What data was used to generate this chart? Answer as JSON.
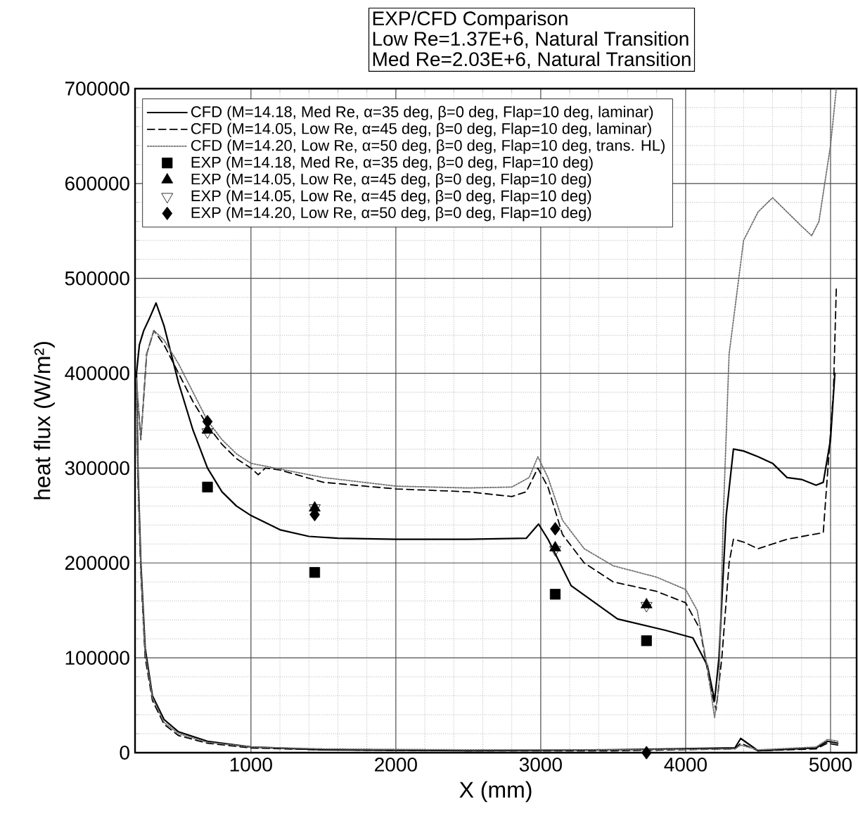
{
  "chart_data": {
    "type": "line",
    "title": "EXP/CFD Comparison",
    "subtitle": "Low Re=1.37E+6, Natural Transition",
    "annotations": [
      "Med Re=2.03E+6, Natural Transition"
    ],
    "xlabel": "X (mm)",
    "ylabel": "heat flux (W/m²)",
    "xlim": [
      200,
      5180
    ],
    "ylim": [
      0,
      700000
    ],
    "xticks": [
      1000,
      2000,
      3000,
      4000,
      5000
    ],
    "yticks": [
      0,
      100000,
      200000,
      300000,
      400000,
      500000,
      600000,
      700000
    ],
    "grid": true,
    "legend": "top left",
    "series": [
      {
        "name": "CFD (M=14.18, Med Re, α=35 deg, β=0 deg, Flap=10 deg, laminar)",
        "type": "line",
        "line_style": "solid",
        "marker": "none",
        "color": "#000000",
        "x": [
          5050,
          4980,
          4900,
          4500,
          4380,
          4340,
          3500,
          2500,
          1500,
          1000,
          700,
          500,
          400,
          320,
          270,
          240,
          220,
          210,
          230,
          260,
          300,
          345,
          400,
          500,
          600,
          700,
          800,
          900,
          1000,
          1200,
          1400,
          1600,
          2000,
          2500,
          2900,
          2985,
          3050,
          3210,
          3530,
          3860,
          4050,
          4150,
          4200,
          4230,
          4280,
          4330,
          4400,
          4500,
          4600,
          4700,
          4800,
          4900,
          4950,
          5000,
          5030
        ],
        "values": [
          10000,
          12000,
          5000,
          2000,
          15000,
          5000,
          3000,
          2000,
          3000,
          6000,
          12000,
          22000,
          35000,
          60000,
          110000,
          200000,
          300000,
          400000,
          430000,
          445000,
          458000,
          474000,
          450000,
          390000,
          340000,
          300000,
          275000,
          260000,
          250000,
          235000,
          228000,
          226000,
          225000,
          225000,
          226000,
          241000,
          225000,
          176000,
          141000,
          129000,
          121000,
          92000,
          55000,
          100000,
          250000,
          320000,
          318000,
          312000,
          305000,
          290000,
          288000,
          282000,
          285000,
          330000,
          400000
        ]
      },
      {
        "name": "CFD (M=14.05, Low Re, α=45 deg, β=0 deg, Flap=10 deg, laminar)",
        "type": "line",
        "line_style": "dashed",
        "marker": "none",
        "color": "#000000",
        "x": [
          5050,
          4980,
          4900,
          4500,
          4380,
          4340,
          3500,
          2500,
          1500,
          1000,
          700,
          500,
          400,
          320,
          270,
          240,
          220,
          210,
          240,
          280,
          330,
          400,
          500,
          600,
          700,
          800,
          900,
          1000,
          1050,
          1100,
          1200,
          1500,
          2000,
          2500,
          2800,
          2900,
          2980,
          3050,
          3150,
          3300,
          3500,
          3800,
          4000,
          4100,
          4170,
          4210,
          4250,
          4300,
          4330,
          4400,
          4500,
          4700,
          4950,
          5020,
          5040
        ],
        "values": [
          8000,
          10000,
          4000,
          2000,
          10000,
          4000,
          2000,
          2000,
          3000,
          5000,
          10000,
          18000,
          30000,
          55000,
          100000,
          190000,
          290000,
          390000,
          330000,
          420000,
          445000,
          430000,
          400000,
          370000,
          345000,
          325000,
          310000,
          300000,
          293000,
          300000,
          298000,
          285000,
          278000,
          275000,
          270000,
          275000,
          300000,
          280000,
          230000,
          200000,
          180000,
          170000,
          158000,
          130000,
          70000,
          45000,
          100000,
          200000,
          225000,
          222000,
          215000,
          225000,
          232000,
          380000,
          490000
        ]
      },
      {
        "name": "CFD (M=14.20, Low Re, α=50 deg, β=0 deg, Flap=10 deg, trans. HL)",
        "type": "line",
        "line_style": "dotted",
        "marker": "none",
        "color": "#707070",
        "x": [
          5050,
          4980,
          4900,
          4500,
          4380,
          4340,
          3500,
          2500,
          1500,
          1000,
          700,
          500,
          400,
          320,
          270,
          240,
          220,
          210,
          240,
          280,
          330,
          400,
          500,
          600,
          700,
          800,
          900,
          1000,
          1100,
          1500,
          2000,
          2500,
          2800,
          2920,
          2980,
          3050,
          3150,
          3300,
          3500,
          3800,
          4000,
          4080,
          4150,
          4200,
          4230,
          4260,
          4300,
          4350,
          4400,
          4500,
          4600,
          4700,
          4800,
          4870,
          4920,
          5000,
          5040
        ],
        "values": [
          12000,
          14000,
          6000,
          3000,
          8000,
          4000,
          3000,
          3000,
          4000,
          6000,
          11000,
          20000,
          32000,
          58000,
          105000,
          195000,
          295000,
          395000,
          330000,
          420000,
          445000,
          435000,
          410000,
          380000,
          350000,
          330000,
          315000,
          305000,
          302000,
          290000,
          281000,
          279000,
          280000,
          290000,
          312000,
          290000,
          245000,
          215000,
          197000,
          185000,
          172000,
          150000,
          90000,
          37000,
          70000,
          250000,
          420000,
          480000,
          540000,
          570000,
          585000,
          570000,
          555000,
          545000,
          560000,
          640000,
          700000
        ]
      },
      {
        "name": "EXP (M=14.18, Med Re, α=35 deg, β=0 deg, Flap=10 deg)",
        "type": "scatter",
        "marker": "square",
        "color": "#000000",
        "x": [
          700,
          1440,
          3100,
          3730
        ],
        "values": [
          280000,
          190000,
          167000,
          118000
        ]
      },
      {
        "name": "EXP (M=14.05, Low Re, α=45 deg, β=0 deg, Flap=10 deg)",
        "type": "scatter",
        "marker": "triangle",
        "color": "#000000",
        "x": [
          700,
          1440,
          3100,
          3730
        ],
        "values": [
          340000,
          258000,
          216000,
          156000
        ]
      },
      {
        "name": "EXP (M=14.05, Low Re, α=45 deg, β=0 deg, Flap=10 deg)",
        "type": "scatter",
        "marker": "triangle-down",
        "color": "#000000",
        "x": [
          700,
          1440,
          3100,
          3730
        ],
        "values": [
          338000,
          258000,
          214000,
          155000
        ]
      },
      {
        "name": "EXP (M=14.20, Low Re, α=50 deg, β=0 deg, Flap=10 deg)",
        "type": "scatter",
        "marker": "diamond",
        "color": "#000000",
        "x": [
          700,
          1440,
          3100,
          3730
        ],
        "values": [
          349000,
          251000,
          236000,
          0
        ]
      }
    ]
  }
}
